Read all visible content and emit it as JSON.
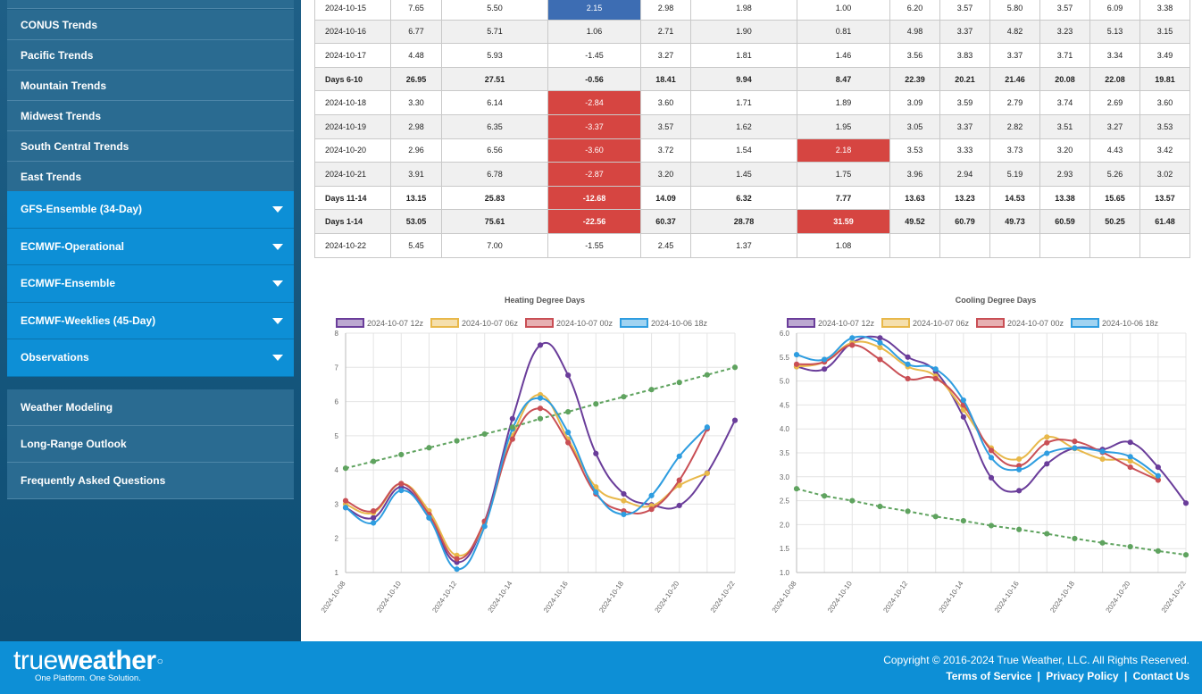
{
  "sidebar": {
    "trends": [
      "CONUS Trends",
      "Pacific Trends",
      "Mountain Trends",
      "Midwest Trends",
      "South Central Trends",
      "East Trends"
    ],
    "models": [
      "GFS-Ensemble (34-Day)",
      "ECMWF-Operational",
      "ECMWF-Ensemble",
      "ECMWF-Weeklies (45-Day)",
      "Observations"
    ],
    "links": [
      "Weather Modeling",
      "Long-Range Outlook",
      "Frequently Asked Questions"
    ]
  },
  "table": {
    "rows": [
      {
        "label": "2024-10-15",
        "cells": [
          "7.65",
          "5.50",
          "2.15",
          "2.98",
          "1.98",
          "1.00",
          "6.20",
          "3.57",
          "5.80",
          "3.57",
          "6.09",
          "3.38"
        ],
        "bold": false,
        "highlight": {
          "2": "blue"
        }
      },
      {
        "label": "2024-10-16",
        "cells": [
          "6.77",
          "5.71",
          "1.06",
          "2.71",
          "1.90",
          "0.81",
          "4.98",
          "3.37",
          "4.82",
          "3.23",
          "5.13",
          "3.15"
        ],
        "bold": false,
        "highlight": {}
      },
      {
        "label": "2024-10-17",
        "cells": [
          "4.48",
          "5.93",
          "-1.45",
          "3.27",
          "1.81",
          "1.46",
          "3.56",
          "3.83",
          "3.37",
          "3.71",
          "3.34",
          "3.49"
        ],
        "bold": false,
        "highlight": {}
      },
      {
        "label": "Days 6-10",
        "cells": [
          "26.95",
          "27.51",
          "-0.56",
          "18.41",
          "9.94",
          "8.47",
          "22.39",
          "20.21",
          "21.46",
          "20.08",
          "22.08",
          "19.81"
        ],
        "bold": true,
        "highlight": {}
      },
      {
        "label": "2024-10-18",
        "cells": [
          "3.30",
          "6.14",
          "-2.84",
          "3.60",
          "1.71",
          "1.89",
          "3.09",
          "3.59",
          "2.79",
          "3.74",
          "2.69",
          "3.60"
        ],
        "bold": false,
        "highlight": {
          "2": "red"
        }
      },
      {
        "label": "2024-10-19",
        "cells": [
          "2.98",
          "6.35",
          "-3.37",
          "3.57",
          "1.62",
          "1.95",
          "3.05",
          "3.37",
          "2.82",
          "3.51",
          "3.27",
          "3.53"
        ],
        "bold": false,
        "highlight": {
          "2": "red"
        }
      },
      {
        "label": "2024-10-20",
        "cells": [
          "2.96",
          "6.56",
          "-3.60",
          "3.72",
          "1.54",
          "2.18",
          "3.53",
          "3.33",
          "3.73",
          "3.20",
          "4.43",
          "3.42"
        ],
        "bold": false,
        "highlight": {
          "2": "red",
          "5": "red"
        }
      },
      {
        "label": "2024-10-21",
        "cells": [
          "3.91",
          "6.78",
          "-2.87",
          "3.20",
          "1.45",
          "1.75",
          "3.96",
          "2.94",
          "5.19",
          "2.93",
          "5.26",
          "3.02"
        ],
        "bold": false,
        "highlight": {
          "2": "red"
        }
      },
      {
        "label": "Days 11-14",
        "cells": [
          "13.15",
          "25.83",
          "-12.68",
          "14.09",
          "6.32",
          "7.77",
          "13.63",
          "13.23",
          "14.53",
          "13.38",
          "15.65",
          "13.57"
        ],
        "bold": true,
        "highlight": {
          "2": "red"
        }
      },
      {
        "label": "Days 1-14",
        "cells": [
          "53.05",
          "75.61",
          "-22.56",
          "60.37",
          "28.78",
          "31.59",
          "49.52",
          "60.79",
          "49.73",
          "60.59",
          "50.25",
          "61.48"
        ],
        "bold": true,
        "highlight": {
          "2": "red",
          "5": "red"
        }
      },
      {
        "label": "2024-10-22",
        "cells": [
          "5.45",
          "7.00",
          "-1.55",
          "2.45",
          "1.37",
          "1.08",
          "",
          "",
          "",
          "",
          "",
          ""
        ],
        "bold": false,
        "highlight": {}
      }
    ]
  },
  "chart_data": [
    {
      "type": "line",
      "title": "Heating Degree Days",
      "x": [
        "2024-10-08",
        "2024-10-09",
        "2024-10-10",
        "2024-10-11",
        "2024-10-12",
        "2024-10-13",
        "2024-10-14",
        "2024-10-15",
        "2024-10-16",
        "2024-10-17",
        "2024-10-18",
        "2024-10-19",
        "2024-10-20",
        "2024-10-21",
        "2024-10-22"
      ],
      "xticks": [
        "2024-10-08",
        "2024-10-10",
        "2024-10-12",
        "2024-10-14",
        "2024-10-16",
        "2024-10-18",
        "2024-10-20",
        "2024-10-22"
      ],
      "ylim": [
        1,
        8
      ],
      "yticks": [
        "1",
        "2",
        "3",
        "4",
        "5",
        "6",
        "7",
        "8"
      ],
      "grid": true,
      "legend": "top",
      "series": [
        {
          "name": "2024-10-07 12z",
          "color": "#6a3d9a",
          "values": [
            2.9,
            2.6,
            3.5,
            2.6,
            1.3,
            2.5,
            5.5,
            7.65,
            6.77,
            4.48,
            3.3,
            2.98,
            2.96,
            3.91,
            5.45
          ]
        },
        {
          "name": "2024-10-07 06z",
          "color": "#e8b84a",
          "values": [
            3.0,
            2.75,
            3.6,
            2.8,
            1.5,
            2.45,
            5.0,
            6.2,
            4.9,
            3.5,
            3.1,
            2.95,
            3.55,
            3.9,
            null
          ]
        },
        {
          "name": "2024-10-07 00z",
          "color": "#c94f55",
          "values": [
            3.1,
            2.8,
            3.6,
            2.7,
            1.4,
            2.5,
            4.9,
            5.8,
            4.8,
            3.3,
            2.8,
            2.85,
            3.7,
            5.2,
            null
          ]
        },
        {
          "name": "2024-10-06 18z",
          "color": "#2e9de0",
          "values": [
            2.9,
            2.45,
            3.4,
            2.6,
            1.1,
            2.35,
            5.2,
            6.1,
            5.1,
            3.35,
            2.7,
            3.25,
            4.4,
            5.25,
            null
          ]
        },
        {
          "name": "",
          "color": "#5fa35f",
          "dashed": true,
          "values": [
            4.05,
            4.25,
            4.45,
            4.65,
            4.85,
            5.05,
            5.25,
            5.5,
            5.7,
            5.93,
            6.14,
            6.35,
            6.56,
            6.78,
            7.0
          ]
        }
      ]
    },
    {
      "type": "line",
      "title": "Cooling Degree Days",
      "x": [
        "2024-10-08",
        "2024-10-09",
        "2024-10-10",
        "2024-10-11",
        "2024-10-12",
        "2024-10-13",
        "2024-10-14",
        "2024-10-15",
        "2024-10-16",
        "2024-10-17",
        "2024-10-18",
        "2024-10-19",
        "2024-10-20",
        "2024-10-21",
        "2024-10-22"
      ],
      "xticks": [
        "2024-10-08",
        "2024-10-10",
        "2024-10-12",
        "2024-10-14",
        "2024-10-16",
        "2024-10-18",
        "2024-10-20",
        "2024-10-22"
      ],
      "ylim": [
        1.0,
        6.0
      ],
      "yticks": [
        "1.0",
        "1.5",
        "2.0",
        "2.5",
        "3.0",
        "3.5",
        "4.0",
        "4.5",
        "5.0",
        "5.5",
        "6.0"
      ],
      "grid": true,
      "legend": "top",
      "series": [
        {
          "name": "2024-10-07 12z",
          "color": "#6a3d9a",
          "values": [
            5.3,
            5.25,
            5.8,
            5.9,
            5.5,
            5.2,
            4.25,
            2.98,
            2.71,
            3.27,
            3.6,
            3.57,
            3.72,
            3.2,
            2.45
          ]
        },
        {
          "name": "2024-10-07 06z",
          "color": "#e8b84a",
          "values": [
            5.3,
            5.4,
            5.8,
            5.7,
            5.3,
            5.1,
            4.4,
            3.6,
            3.37,
            3.83,
            3.59,
            3.37,
            3.33,
            2.94,
            null
          ]
        },
        {
          "name": "2024-10-07 00z",
          "color": "#c94f55",
          "values": [
            5.35,
            5.4,
            5.75,
            5.45,
            5.05,
            5.05,
            4.5,
            3.55,
            3.23,
            3.71,
            3.74,
            3.51,
            3.2,
            2.93,
            null
          ]
        },
        {
          "name": "2024-10-06 18z",
          "color": "#2e9de0",
          "values": [
            5.55,
            5.45,
            5.9,
            5.8,
            5.35,
            5.25,
            4.6,
            3.4,
            3.15,
            3.49,
            3.6,
            3.53,
            3.42,
            3.02,
            null
          ]
        },
        {
          "name": "",
          "color": "#5fa35f",
          "dashed": true,
          "values": [
            2.75,
            2.6,
            2.5,
            2.38,
            2.28,
            2.17,
            2.08,
            1.98,
            1.9,
            1.81,
            1.71,
            1.62,
            1.54,
            1.45,
            1.37
          ]
        }
      ]
    }
  ],
  "footer": {
    "logo_light": "true",
    "logo_bold": "weather",
    "tagline": "One Platform. One Solution.",
    "copyright": "Copyright © 2016-2024 True Weather, LLC. All Rights Reserved.",
    "terms": "Terms of Service",
    "privacy": "Privacy Policy",
    "contact": "Contact Us",
    "sep": "|"
  }
}
